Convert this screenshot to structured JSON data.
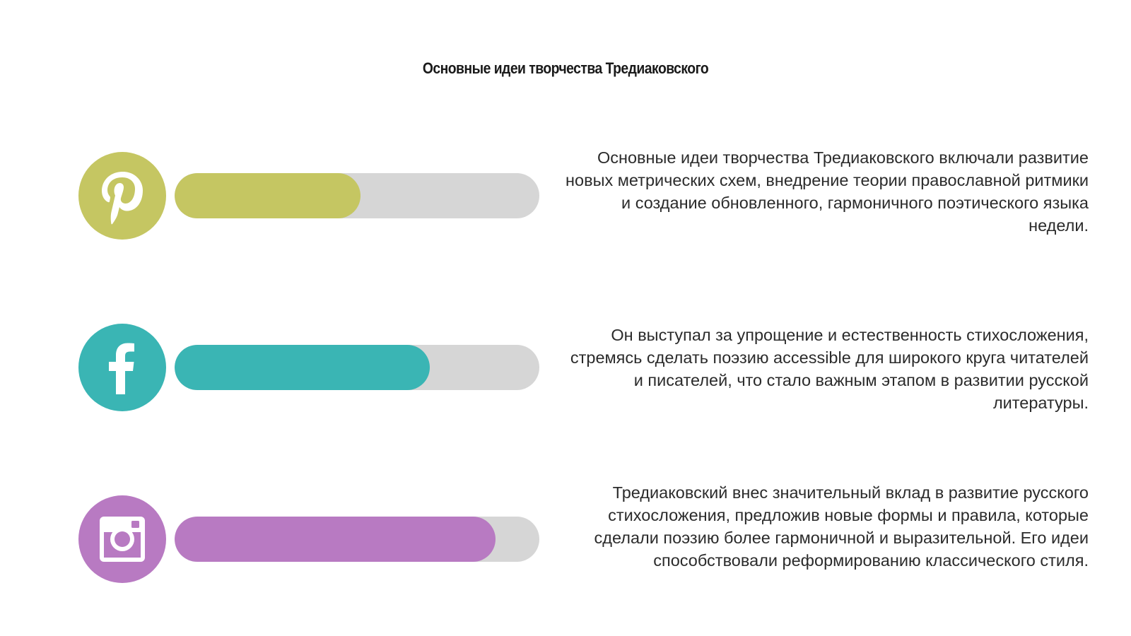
{
  "title": "Основные идеи творчества Тредиаковского",
  "items": [
    {
      "icon": "pinterest-icon",
      "color": "#c5c662",
      "progress_percent": 51,
      "text": "Основные идеи творчества Тредиаковского включали развитие новых метрических схем, внедрение теории православной ритмики и создание обновленного, гармоничного поэтического языка недели."
    },
    {
      "icon": "facebook-icon",
      "color": "#3ab5b4",
      "progress_percent": 70,
      "text": "Он выступал за упрощение и естественность стихосложения, стремясь сделать поэзию accessible для широкого круга читателей и писателей, что стало важным этапом в развитии русской литературы."
    },
    {
      "icon": "instagram-icon",
      "color": "#b87ac2",
      "progress_percent": 88,
      "text": "Тредиаковский внес значительный вклад в развитие русского стихосложения, предложив новые формы и правила, которые сделали поэзию более гармоничной и выразительной. Его идеи способствовали реформированию классического стиля."
    }
  ]
}
